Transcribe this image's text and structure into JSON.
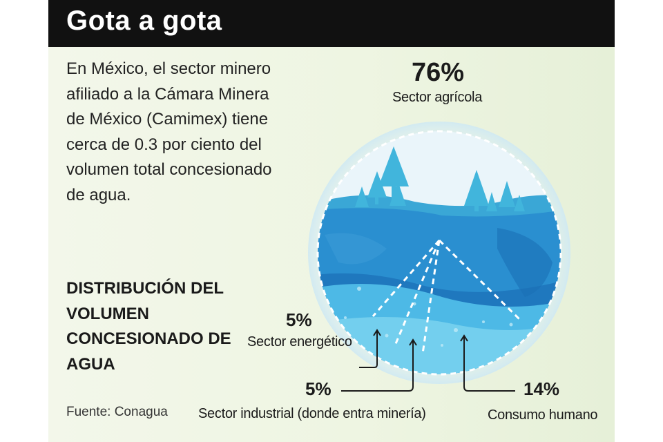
{
  "header": {
    "title": "Gota a gota"
  },
  "intro": {
    "text": "En México, el sector minero afiliado a la Cámara Minera de México (Camimex) tiene cerca de 0.3 por ciento del volumen total concesionado de agua."
  },
  "subheading": {
    "text": "DISTRIBUCIÓN DEL VOLUMEN CONCESIONADO DE AGUA"
  },
  "source": {
    "text": "Fuente: Conagua"
  },
  "colors": {
    "header_bg": "#111111",
    "deep_water": "#1f86c8",
    "light_water": "#5cc6ea",
    "trees": "#3db2d8",
    "sky": "#e9f4f9"
  },
  "chart_data": {
    "type": "pie",
    "title": "",
    "categories": [
      "Sector agrícola",
      "Sector energético",
      "Sector industrial (donde entra minería)",
      "Consumo humano"
    ],
    "values": [
      76,
      5,
      5,
      14
    ],
    "value_labels": [
      "76%",
      "5%",
      "5%",
      "14%"
    ],
    "unit": "%"
  }
}
